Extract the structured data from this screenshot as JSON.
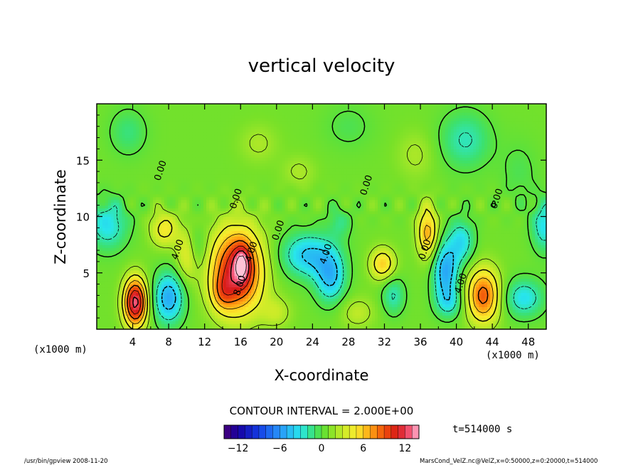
{
  "chart_data": {
    "type": "heatmap",
    "title": "vertical velocity",
    "xlabel": "X-coordinate",
    "ylabel": "Z-coordinate",
    "x_unit_left": "(x1000 m)",
    "x_unit_right": "(x1000 m)",
    "xlim": [
      0,
      50
    ],
    "ylim": [
      0,
      20
    ],
    "x_ticks": [
      "4",
      "8",
      "12",
      "16",
      "20",
      "24",
      "28",
      "32",
      "36",
      "40",
      "44",
      "48"
    ],
    "x_tick_values": [
      4,
      8,
      12,
      16,
      20,
      24,
      28,
      32,
      36,
      40,
      44,
      48
    ],
    "y_ticks": [
      "5",
      "10",
      "15"
    ],
    "y_tick_values": [
      5,
      10,
      15
    ],
    "contour_interval_text": "CONTOUR INTERVAL = 2.000E+00",
    "contour_labels": [
      {
        "text": "4.00",
        "x": 9.3,
        "z": 7.0
      },
      {
        "text": "4.00",
        "x": 17.5,
        "z": 6.8
      },
      {
        "text": "4.00",
        "x": 25.8,
        "z": 6.6
      },
      {
        "text": "4.00",
        "x": 40.8,
        "z": 4.0
      },
      {
        "text": "0.00",
        "x": 36.8,
        "z": 7.0
      },
      {
        "text": "0.00",
        "x": 20.5,
        "z": 8.7
      },
      {
        "text": "0.00",
        "x": 7.4,
        "z": 14.0
      },
      {
        "text": "0.00",
        "x": 15.8,
        "z": 11.5
      },
      {
        "text": "0.00",
        "x": 30.3,
        "z": 12.7
      },
      {
        "text": "0.00",
        "x": 44.8,
        "z": 11.5
      },
      {
        "text": "8.00",
        "x": 16.2,
        "z": 3.8
      }
    ],
    "features": [
      {
        "x": 4.3,
        "z": 2.4,
        "sx": 0.9,
        "sz": 1.5,
        "amp": 12
      },
      {
        "x": 8.0,
        "z": 2.8,
        "sx": 1.2,
        "sz": 1.6,
        "amp": -6
      },
      {
        "x": 10.2,
        "z": 6.7,
        "sx": 0.9,
        "sz": 1.6,
        "amp": 4
      },
      {
        "x": 7.5,
        "z": 8.9,
        "sx": 1.1,
        "sz": 1.1,
        "amp": 4
      },
      {
        "x": 11.0,
        "z": 7.2,
        "sx": 0.8,
        "sz": 1.4,
        "amp": -3
      },
      {
        "x": 15.6,
        "z": 5.2,
        "sx": 2.0,
        "sz": 2.6,
        "amp": 11
      },
      {
        "x": 16.2,
        "z": 5.8,
        "sx": 0.6,
        "sz": 1.1,
        "amp": 5
      },
      {
        "x": 14.0,
        "z": 3.2,
        "sx": 0.9,
        "sz": 1.1,
        "amp": 3
      },
      {
        "x": 1.2,
        "z": 9.3,
        "sx": 1.6,
        "sz": 1.6,
        "amp": -4
      },
      {
        "x": 23.5,
        "z": 6.6,
        "sx": 2.1,
        "sz": 1.4,
        "amp": -5
      },
      {
        "x": 26.0,
        "z": 4.6,
        "sx": 1.2,
        "sz": 1.6,
        "amp": -5
      },
      {
        "x": 27.0,
        "z": 9.5,
        "sx": 1.0,
        "sz": 1.0,
        "amp": -2
      },
      {
        "x": 31.8,
        "z": 5.8,
        "sx": 1.0,
        "sz": 1.0,
        "amp": 5
      },
      {
        "x": 33.0,
        "z": 3.0,
        "sx": 0.9,
        "sz": 1.2,
        "amp": -3
      },
      {
        "x": 36.8,
        "z": 8.6,
        "sx": 0.8,
        "sz": 1.6,
        "amp": 6
      },
      {
        "x": 38.8,
        "z": 5.2,
        "sx": 1.0,
        "sz": 1.8,
        "amp": -6
      },
      {
        "x": 40.6,
        "z": 7.8,
        "sx": 1.0,
        "sz": 1.4,
        "amp": -4
      },
      {
        "x": 39.2,
        "z": 2.4,
        "sx": 1.1,
        "sz": 1.0,
        "amp": -3
      },
      {
        "x": 43.0,
        "z": 3.0,
        "sx": 1.3,
        "sz": 1.7,
        "amp": 8
      },
      {
        "x": 47.5,
        "z": 2.8,
        "sx": 1.6,
        "sz": 1.2,
        "amp": -4
      },
      {
        "x": 49.8,
        "z": 9.2,
        "sx": 1.0,
        "sz": 1.6,
        "amp": -4
      },
      {
        "x": 41.0,
        "z": 16.8,
        "sx": 2.0,
        "sz": 1.8,
        "amp": -3
      },
      {
        "x": 3.5,
        "z": 17.5,
        "sx": 1.5,
        "sz": 1.5,
        "amp": -2
      },
      {
        "x": 18.0,
        "z": 16.5,
        "sx": 1.5,
        "sz": 1.2,
        "amp": 1.5
      },
      {
        "x": 22.5,
        "z": 14.0,
        "sx": 1.3,
        "sz": 1.0,
        "amp": 1.5
      },
      {
        "x": 35.5,
        "z": 15.5,
        "sx": 1.5,
        "sz": 1.5,
        "amp": 1.5
      },
      {
        "x": 28.0,
        "z": 18.0,
        "sx": 2.0,
        "sz": 1.5,
        "amp": -1.2
      },
      {
        "x": 47.0,
        "z": 14.0,
        "sx": 1.5,
        "sz": 2.0,
        "amp": -1.2
      },
      {
        "x": 20.0,
        "z": 1.5,
        "sx": 1.2,
        "sz": 1.0,
        "amp": 2
      },
      {
        "x": 29.0,
        "z": 1.5,
        "sx": 1.4,
        "sz": 1.0,
        "amp": 2
      }
    ],
    "colorbar": {
      "min": -14,
      "max": 14,
      "step": 1,
      "ticks": [
        "−12",
        "−6",
        "0",
        "6",
        "12"
      ],
      "tick_values": [
        -12,
        -6,
        0,
        6,
        12
      ]
    },
    "time_label": "t=514000 s",
    "footer_left": "/usr/bin/gpview  2008-11-20",
    "footer_right": "MarsCond_VelZ.nc@VelZ,x=0:50000,z=0:20000,t=514000"
  }
}
